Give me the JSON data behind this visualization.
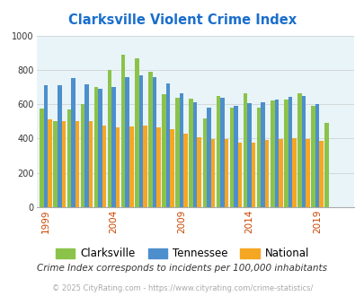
{
  "title": "Clarksville Violent Crime Index",
  "title_color": "#1a6ecc",
  "subtitle": "Crime Index corresponds to incidents per 100,000 inhabitants",
  "footer": "© 2025 CityRating.com - https://www.cityrating.com/crime-statistics/",
  "years": [
    1999,
    2000,
    2001,
    2002,
    2003,
    2004,
    2005,
    2006,
    2007,
    2008,
    2009,
    2010,
    2011,
    2012,
    2013,
    2014,
    2015,
    2016,
    2017,
    2018,
    2019,
    2020,
    2021
  ],
  "clarksville": [
    575,
    500,
    570,
    600,
    700,
    800,
    890,
    865,
    790,
    660,
    635,
    630,
    515,
    650,
    580,
    665,
    580,
    620,
    625,
    665,
    590,
    490,
    null
  ],
  "tennessee": [
    710,
    710,
    750,
    715,
    690,
    700,
    760,
    770,
    760,
    720,
    665,
    610,
    580,
    640,
    590,
    605,
    610,
    625,
    645,
    650,
    600,
    null,
    null
  ],
  "national": [
    510,
    500,
    500,
    500,
    475,
    465,
    470,
    475,
    465,
    455,
    430,
    405,
    395,
    395,
    375,
    375,
    390,
    395,
    400,
    395,
    385,
    null,
    null
  ],
  "clarksville_color": "#8bc34a",
  "tennessee_color": "#4d8fcc",
  "national_color": "#f5a623",
  "bg_color": "#e8f4f8",
  "ylim": [
    0,
    1000
  ],
  "yticks": [
    0,
    200,
    400,
    600,
    800,
    1000
  ],
  "xtick_years": [
    1999,
    2004,
    2009,
    2014,
    2019
  ],
  "legend_labels": [
    "Clarksville",
    "Tennessee",
    "National"
  ],
  "bar_width": 0.3,
  "grid_color": "#cccccc",
  "tick_color": "#cc4400",
  "ytick_color": "#333333",
  "subtitle_color": "#333333",
  "footer_color": "#aaaaaa"
}
